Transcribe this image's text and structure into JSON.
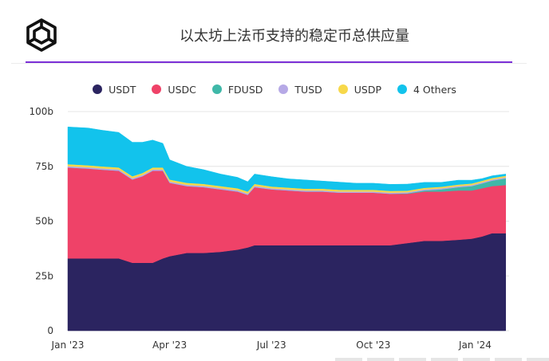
{
  "title": "以太坊上法币支持的稳定币总供应量",
  "legend": [
    {
      "label": "USDT",
      "color": "#2b2460"
    },
    {
      "label": "USDC",
      "color": "#ef4268"
    },
    {
      "label": "FDUSD",
      "color": "#3fb8a8"
    },
    {
      "label": "TUSD",
      "color": "#b6a9e6"
    },
    {
      "label": "USDP",
      "color": "#f7d84a"
    },
    {
      "label": "4 Others",
      "color": "#12c3ec"
    }
  ],
  "chart_data": {
    "type": "area",
    "stacked": true,
    "x_ticks": [
      "Jan '23",
      "Apr '23",
      "Jul '23",
      "Oct '23",
      "Jan '24"
    ],
    "y_ticks": [
      "0",
      "25b",
      "50b",
      "75b",
      "100b"
    ],
    "ylim": [
      0,
      100
    ],
    "x_unit": "month",
    "x": [
      0,
      0.6,
      1.0,
      1.5,
      1.9,
      2.0,
      2.2,
      2.5,
      2.8,
      3.0,
      3.5,
      4.0,
      4.5,
      5.0,
      5.3,
      5.5,
      6.0,
      6.5,
      7.0,
      7.5,
      8.0,
      8.5,
      9.0,
      9.5,
      10.0,
      10.5,
      11.0,
      11.5,
      11.9,
      12.2,
      12.5,
      12.9
    ],
    "series": [
      {
        "name": "USDT",
        "values": [
          33,
          33,
          33,
          33,
          31,
          31,
          31,
          31,
          33,
          34,
          35.5,
          35.5,
          36,
          37,
          38,
          39,
          39,
          39,
          39,
          39,
          39,
          39,
          39,
          39,
          40,
          41,
          41,
          41.5,
          42,
          43,
          44.5,
          44.5
        ]
      },
      {
        "name": "USDC",
        "values": [
          41.5,
          41,
          40.5,
          40,
          38,
          38.5,
          39.5,
          42,
          40,
          33.5,
          30.5,
          30,
          28.5,
          26.5,
          24,
          26.5,
          25.5,
          25,
          24.5,
          24.5,
          24,
          24,
          24,
          23.5,
          22.5,
          22.5,
          22.5,
          22.5,
          22,
          22,
          21.5,
          22
        ]
      },
      {
        "name": "FDUSD",
        "values": [
          0,
          0,
          0,
          0,
          0,
          0,
          0,
          0,
          0,
          0,
          0,
          0,
          0,
          0,
          0,
          0,
          0,
          0,
          0,
          0,
          0,
          0,
          0,
          0,
          0.2,
          0.5,
          1.0,
          1.5,
          2.0,
          2.2,
          2.5,
          3.0
        ]
      },
      {
        "name": "TUSD",
        "values": [
          0.6,
          0.6,
          0.6,
          0.6,
          0.6,
          0.6,
          0.6,
          0.6,
          0.6,
          0.6,
          0.6,
          0.6,
          0.6,
          0.6,
          0.6,
          0.6,
          0.5,
          0.5,
          0.5,
          0.5,
          0.5,
          0.5,
          0.5,
          0.5,
          0.5,
          0.5,
          0.5,
          0.5,
          0.5,
          0.5,
          0.5,
          0.5
        ]
      },
      {
        "name": "USDP",
        "values": [
          0.9,
          0.9,
          0.9,
          0.9,
          0.9,
          0.9,
          0.9,
          0.9,
          0.9,
          0.9,
          0.9,
          0.9,
          0.9,
          0.9,
          0.9,
          0.9,
          0.8,
          0.8,
          0.8,
          0.8,
          0.8,
          0.8,
          0.8,
          0.8,
          0.7,
          0.7,
          0.7,
          0.7,
          0.7,
          0.7,
          0.7,
          0.7
        ]
      },
      {
        "name": "4 Others",
        "values": [
          17,
          17,
          16.5,
          16,
          15.5,
          15,
          14,
          12.5,
          11,
          9,
          7.5,
          6.5,
          5.5,
          5,
          4.5,
          4.5,
          4.5,
          4,
          4,
          3.5,
          3.5,
          3.0,
          3,
          3,
          3,
          2.5,
          2,
          2,
          1.5,
          1,
          1,
          0.8
        ]
      }
    ],
    "grid": true
  }
}
